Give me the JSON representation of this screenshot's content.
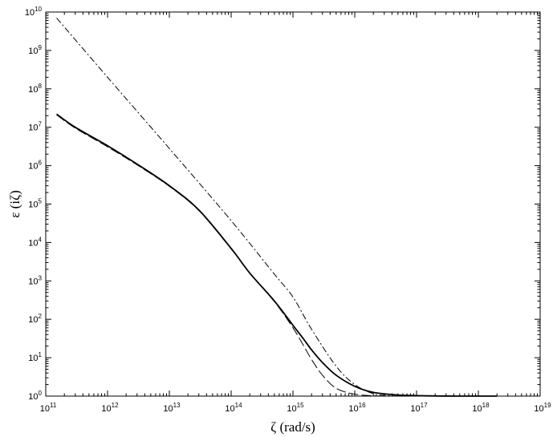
{
  "chart_data": {
    "type": "line",
    "title": "",
    "xlabel": "ζ (rad/s)",
    "ylabel": "ε (iζ)",
    "xscale": "log",
    "yscale": "log",
    "xlim": [
      100000000000.0,
      1e+19
    ],
    "ylim": [
      1,
      10000000000.0
    ],
    "grid": false,
    "legend": "none",
    "x_ticks": [
      {
        "base": "10",
        "exp": "11",
        "value": 100000000000.0
      },
      {
        "base": "10",
        "exp": "12",
        "value": 1000000000000.0
      },
      {
        "base": "10",
        "exp": "13",
        "value": 10000000000000.0
      },
      {
        "base": "10",
        "exp": "14",
        "value": 100000000000000.0
      },
      {
        "base": "10",
        "exp": "15",
        "value": 1000000000000000.0
      },
      {
        "base": "10",
        "exp": "16",
        "value": 1e+16
      },
      {
        "base": "10",
        "exp": "17",
        "value": 1e+17
      },
      {
        "base": "10",
        "exp": "18",
        "value": 1e+18
      },
      {
        "base": "10",
        "exp": "19",
        "value": 1e+19
      }
    ],
    "y_ticks": [
      {
        "base": "10",
        "exp": "0",
        "value": 1
      },
      {
        "base": "10",
        "exp": "1",
        "value": 10.0
      },
      {
        "base": "10",
        "exp": "2",
        "value": 100.0
      },
      {
        "base": "10",
        "exp": "3",
        "value": 1000.0
      },
      {
        "base": "10",
        "exp": "4",
        "value": 10000.0
      },
      {
        "base": "10",
        "exp": "5",
        "value": 100000.0
      },
      {
        "base": "10",
        "exp": "6",
        "value": 1000000.0
      },
      {
        "base": "10",
        "exp": "7",
        "value": 10000000.0
      },
      {
        "base": "10",
        "exp": "8",
        "value": 100000000.0
      },
      {
        "base": "10",
        "exp": "9",
        "value": 1000000000.0
      },
      {
        "base": "10",
        "exp": "10",
        "value": 10000000000.0
      }
    ],
    "series": [
      {
        "style": "solid",
        "color": "#000000",
        "width": 1.8,
        "x": [
          150000000000.0,
          300000000000.0,
          1000000000000.0,
          3000000000000.0,
          10000000000000.0,
          30000000000000.0,
          100000000000000.0,
          200000000000000.0,
          500000000000000.0,
          1000000000000000.0,
          1500000000000000.0,
          2000000000000000.0,
          3000000000000000.0,
          5000000000000000.0,
          1e+16,
          2e+16,
          5e+16,
          1e+17,
          2e+17,
          5e+17,
          1e+18,
          2e+18
        ],
        "y": [
          22000000.0,
          10000000.0,
          3300000.0,
          1100000.0,
          300000.0,
          70000.0,
          7000.0,
          1600.0,
          300.0,
          70.0,
          30.0,
          16.0,
          7.5,
          3.5,
          1.8,
          1.25,
          1.07,
          1.03,
          1.01,
          1.0,
          1.0,
          1.0
        ]
      },
      {
        "style": "dash",
        "color": "#000000",
        "width": 1.0,
        "x": [
          150000000000.0,
          300000000000.0,
          1000000000000.0,
          3000000000000.0,
          10000000000000.0,
          30000000000000.0,
          100000000000000.0,
          200000000000000.0,
          500000000000000.0,
          1000000000000000.0,
          1500000000000000.0,
          2000000000000000.0,
          3000000000000000.0,
          5000000000000000.0,
          1e+16,
          2e+16,
          3e+16,
          5e+16,
          7e+16
        ],
        "y": [
          21000000.0,
          9500000.0,
          3100000.0,
          1050000.0,
          290000.0,
          68000.0,
          6800.0,
          1600.0,
          290.0,
          60.0,
          20.0,
          9.0,
          3.5,
          1.6,
          1.12,
          1.02,
          1.005,
          1.0,
          1.0
        ]
      },
      {
        "style": "dashdot",
        "color": "#000000",
        "width": 1.0,
        "x": [
          150000000000.0,
          1000000000000.0,
          10000000000000.0,
          100000000000000.0,
          500000000000000.0,
          1000000000000000.0,
          2000000000000000.0,
          5000000000000000.0,
          1e+16,
          2e+16,
          3e+16,
          5e+16,
          7e+16
        ],
        "y": [
          7000000000.0,
          200000000.0,
          2800000.0,
          37000.0,
          1500.0,
          380.0,
          55.0,
          6.0,
          2.0,
          1.15,
          1.05,
          1.0,
          1.0
        ]
      }
    ]
  }
}
